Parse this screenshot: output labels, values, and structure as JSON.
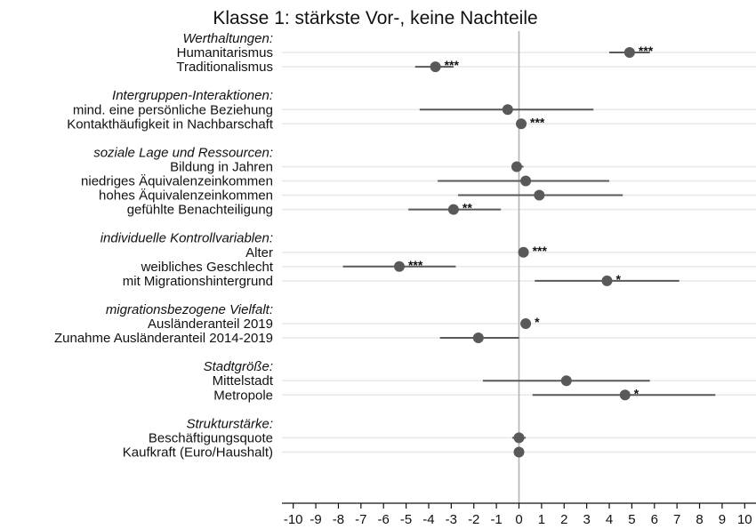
{
  "chart_data": {
    "type": "scatter",
    "subtype": "coefficient-plot",
    "title": "Klasse 1: stärkste Vor-, keine Nachteile",
    "xlabel": "",
    "ylabel": "",
    "xlim": [
      -10.5,
      10.5
    ],
    "xticks": [
      -10,
      -9,
      -8,
      -7,
      -6,
      -5,
      -4,
      -3,
      -2,
      -1,
      0,
      1,
      2,
      3,
      4,
      5,
      6,
      7,
      8,
      9,
      10
    ],
    "grid": "horizontal",
    "reference_line_x": 0,
    "colors": {
      "marker": "#595959",
      "ci": "#595959",
      "gridline": "#e8e8e8",
      "refline": "#b3b3b3"
    },
    "rows": [
      {
        "kind": "group",
        "label": "Werthaltungen:"
      },
      {
        "kind": "item",
        "label": "Humanitarismus",
        "estimate": 4.9,
        "ci": [
          4.0,
          5.8
        ],
        "sig": "***"
      },
      {
        "kind": "item",
        "label": "Traditionalismus",
        "estimate": -3.7,
        "ci": [
          -4.6,
          -2.9
        ],
        "sig": "***"
      },
      {
        "kind": "blank"
      },
      {
        "kind": "group",
        "label": "Intergruppen-Interaktionen:"
      },
      {
        "kind": "item",
        "label": "mind. eine persönliche Beziehung",
        "estimate": -0.5,
        "ci": [
          -4.4,
          3.3
        ],
        "sig": ""
      },
      {
        "kind": "item",
        "label": "Kontakthäufigkeit in Nachbarschaft",
        "estimate": 0.1,
        "ci": [
          0.0,
          0.2
        ],
        "sig": "***"
      },
      {
        "kind": "blank"
      },
      {
        "kind": "group",
        "label": "soziale Lage und Ressourcen:"
      },
      {
        "kind": "item",
        "label": "Bildung in Jahren",
        "estimate": -0.1,
        "ci": [
          -0.3,
          0.2
        ],
        "sig": ""
      },
      {
        "kind": "item",
        "label": "niedriges Äquivalenzeinkommen",
        "estimate": 0.3,
        "ci": [
          -3.6,
          4.0
        ],
        "sig": ""
      },
      {
        "kind": "item",
        "label": "hohes Äquivalenzeinkommen",
        "estimate": 0.9,
        "ci": [
          -2.7,
          4.6
        ],
        "sig": ""
      },
      {
        "kind": "item",
        "label": "gefühlte Benachteiligung",
        "estimate": -2.9,
        "ci": [
          -4.9,
          -0.8
        ],
        "sig": "**"
      },
      {
        "kind": "blank"
      },
      {
        "kind": "group",
        "label": "individuelle Kontrollvariablen:"
      },
      {
        "kind": "item",
        "label": "Alter",
        "estimate": 0.2,
        "ci": [
          0.1,
          0.3
        ],
        "sig": "***"
      },
      {
        "kind": "item",
        "label": "weibliches Geschlecht",
        "estimate": -5.3,
        "ci": [
          -7.8,
          -2.8
        ],
        "sig": "***"
      },
      {
        "kind": "item",
        "label": "mit Migrationshintergrund",
        "estimate": 3.9,
        "ci": [
          0.7,
          7.1
        ],
        "sig": "*"
      },
      {
        "kind": "blank"
      },
      {
        "kind": "group",
        "label": "migrationsbezogene Vielfalt:"
      },
      {
        "kind": "item",
        "label": "Ausländeranteil 2019",
        "estimate": 0.3,
        "ci": [
          0.1,
          0.5
        ],
        "sig": "*"
      },
      {
        "kind": "item",
        "label": "Zunahme Ausländeranteil 2014-2019",
        "estimate": -1.8,
        "ci": [
          -3.5,
          0.0
        ],
        "sig": ""
      },
      {
        "kind": "blank"
      },
      {
        "kind": "group",
        "label": "Stadtgröße:"
      },
      {
        "kind": "item",
        "label": "Mittelstadt",
        "estimate": 2.1,
        "ci": [
          -1.6,
          5.8
        ],
        "sig": ""
      },
      {
        "kind": "item",
        "label": "Metropole",
        "estimate": 4.7,
        "ci": [
          0.6,
          8.7
        ],
        "sig": "*"
      },
      {
        "kind": "blank"
      },
      {
        "kind": "group",
        "label": "Strukturstärke:"
      },
      {
        "kind": "item",
        "label": "Beschäftigungsquote",
        "estimate": 0.0,
        "ci": [
          -0.3,
          0.3
        ],
        "sig": ""
      },
      {
        "kind": "item",
        "label": "Kaufkraft (Euro/Haushalt)",
        "estimate": 0.0,
        "ci": [
          0.0,
          0.0
        ],
        "sig": ""
      }
    ]
  }
}
